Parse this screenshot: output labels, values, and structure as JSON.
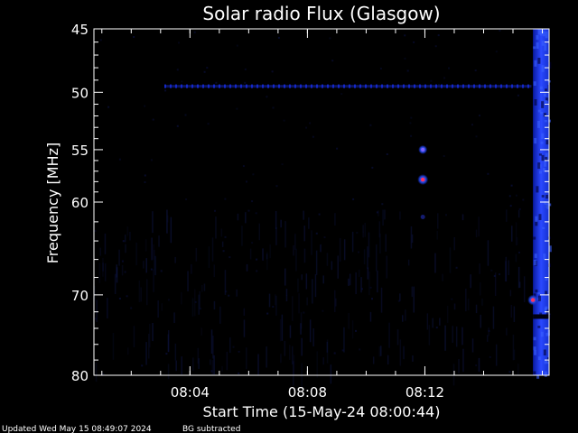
{
  "chart_data": {
    "type": "heatmap",
    "title": "Solar radio Flux (Glasgow)",
    "xlabel": "Start Time (15-May-24 08:00:44)",
    "ylabel": "Frequency [MHz]",
    "x_unit": "minutes after 08:00:44",
    "xlim": [
      0,
      15.5
    ],
    "ylim": [
      45,
      80
    ],
    "y_scale": "log",
    "y_inverted": true,
    "x_ticks": [
      {
        "value": 3.27,
        "label": "08:04"
      },
      {
        "value": 7.27,
        "label": "08:08"
      },
      {
        "value": 11.27,
        "label": "08:12"
      }
    ],
    "x_minor_tick_step": 1,
    "y_ticks": [
      {
        "value": 45,
        "label": "45"
      },
      {
        "value": 50,
        "label": "50"
      },
      {
        "value": 55,
        "label": "55"
      },
      {
        "value": 60,
        "label": "60"
      },
      {
        "value": 70,
        "label": "70"
      },
      {
        "value": 80,
        "label": "80"
      }
    ],
    "y_minor_ticks": [
      46,
      47,
      48,
      49,
      51,
      52,
      53,
      54,
      56,
      57,
      58,
      59,
      62,
      64,
      66,
      68,
      72,
      74,
      76,
      78
    ],
    "features": [
      {
        "kind": "horizontal_band",
        "frequency": 49.5,
        "x_start": 2.4,
        "x_end": 14.9,
        "intensity": "medium"
      },
      {
        "kind": "vertical_band",
        "x_start": 14.95,
        "x_end": 15.5,
        "y_start": 45,
        "y_end": 80,
        "intensity": "high"
      },
      {
        "kind": "point",
        "x": 11.2,
        "frequency": 55.0,
        "intensity": "high"
      },
      {
        "kind": "point",
        "x": 11.2,
        "frequency": 57.8,
        "intensity": "very_high"
      },
      {
        "kind": "point",
        "x": 11.2,
        "frequency": 61.5,
        "intensity": "low"
      },
      {
        "kind": "point",
        "x": 14.95,
        "frequency": 70.6,
        "intensity": "very_high"
      }
    ],
    "colors": {
      "background": "#000000",
      "low": "#0a0a2a",
      "medium": "#1428c8",
      "high": "#2040ff",
      "very_high": "#ff3060",
      "axis": "#ffffff"
    }
  },
  "footer": {
    "updated": "Updated Wed May 15 08:49:07 2024",
    "note": "BG subtracted"
  }
}
